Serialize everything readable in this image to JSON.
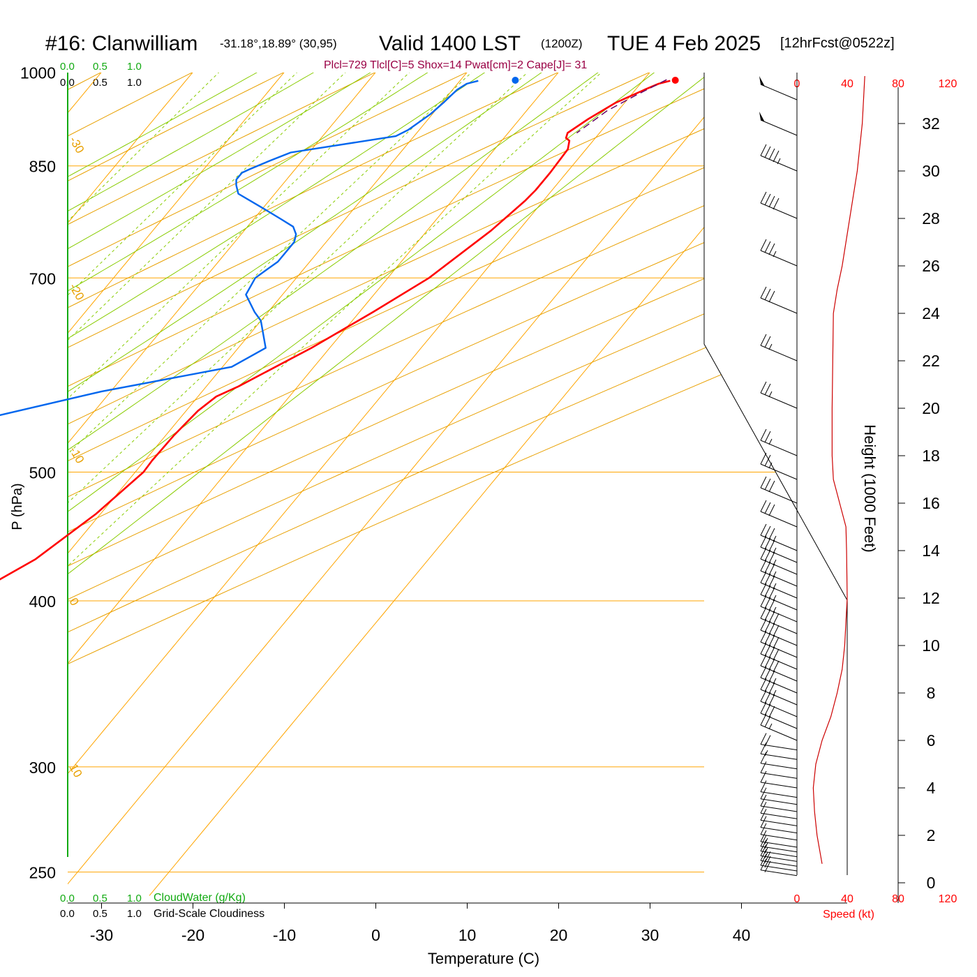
{
  "header": {
    "station": "#16: Clanwilliam",
    "coords": "-31.18°,18.89° (30,95)",
    "valid": "Valid 1400 LST",
    "zulu": "(1200Z)",
    "date": "TUE 4 Feb 2025",
    "forecast": "[12hrFcst@0522z]",
    "indices": "Plcl=729 Tlcl[C]=5 Shox=14 Pwat[cm]=2 Cape[J]= 31"
  },
  "scales": {
    "cloudwater_ticks": [
      "0.0",
      "0.5",
      "1.0"
    ],
    "cloudiness_ticks": [
      "0.0",
      "0.5",
      "1.0"
    ],
    "cloudwater_label": "CloudWater (g/Kg)",
    "cloudiness_label": "Grid-Scale Cloudiness",
    "speed_ticks": [
      "0",
      "40",
      "80",
      "120"
    ],
    "speed_label": "Speed (kt)"
  },
  "colors": {
    "isobar": "#ffa500",
    "dry_adiabat": "#e8a000",
    "moist_adiabat": "#88cc00",
    "mixing_ratio": "#88cc00",
    "temperature": "#ff0000",
    "dewpoint": "#0066ee",
    "parcel": "#660066",
    "speed": "#cc0000"
  },
  "chart_data": {
    "type": "line",
    "chart_kind": "skew-T log-P sounding",
    "xlabel": "Temperature (C)",
    "ylabel": "P (hPa)",
    "y2label": "Height (1000 Feet)",
    "x_ticks": [
      -30,
      -20,
      -10,
      0,
      10,
      20,
      30,
      40
    ],
    "y_ticks": [
      250,
      300,
      400,
      500,
      700,
      850,
      1000
    ],
    "height_ticks": [
      0,
      2,
      4,
      6,
      8,
      10,
      12,
      14,
      16,
      18,
      20,
      22,
      24,
      26,
      28,
      30,
      32
    ],
    "dry_adiabat_labels": [
      "10",
      "0",
      "-10",
      "-20",
      "-30"
    ],
    "dry_adiabat_label_pressures": [
      300,
      400,
      520,
      690,
      890
    ],
    "isotherm_labels": [
      "0",
      "10",
      "20",
      "30"
    ],
    "mixing_ratio_values": [
      1,
      2,
      3,
      5,
      8,
      12,
      20
    ],
    "series": [
      {
        "name": "Temperature",
        "points": [
          [
            33.0,
            985
          ],
          [
            32.0,
            980
          ],
          [
            31.0,
            970
          ],
          [
            29.0,
            948
          ],
          [
            27.5,
            922
          ],
          [
            26.5,
            900
          ],
          [
            26.8,
            892
          ],
          [
            27.4,
            888
          ],
          [
            28.0,
            875
          ],
          [
            28.2,
            840
          ],
          [
            28.2,
            815
          ],
          [
            28.0,
            800
          ],
          [
            27.0,
            760
          ],
          [
            24.5,
            700
          ],
          [
            21.5,
            660
          ],
          [
            18.0,
            620
          ],
          [
            13.5,
            580
          ],
          [
            12.0,
            570
          ],
          [
            11.3,
            556
          ],
          [
            10.9,
            533
          ],
          [
            10.8,
            510
          ],
          [
            10.9,
            500
          ],
          [
            9.5,
            465
          ],
          [
            7.0,
            430
          ],
          [
            2.0,
            395
          ],
          [
            -1.5,
            367
          ],
          [
            -4.0,
            350
          ],
          [
            -13.0,
            300
          ],
          [
            -22.0,
            258
          ]
        ]
      },
      {
        "name": "Dewpoint",
        "points": [
          [
            12.0,
            985
          ],
          [
            11.0,
            980
          ],
          [
            10.5,
            970
          ],
          [
            10.2,
            950
          ],
          [
            9.8,
            930
          ],
          [
            8.8,
            905
          ],
          [
            8.0,
            895
          ],
          [
            -2.0,
            870
          ],
          [
            -3.5,
            858
          ],
          [
            -5.0,
            845
          ],
          [
            -5.5,
            840
          ],
          [
            -5.5,
            830
          ],
          [
            -5.0,
            822
          ],
          [
            -4.0,
            810
          ],
          [
            0.0,
            790
          ],
          [
            3.0,
            775
          ],
          [
            5.0,
            765
          ],
          [
            6.0,
            755
          ],
          [
            6.5,
            745
          ],
          [
            6.5,
            720
          ],
          [
            6.0,
            710
          ],
          [
            5.5,
            700
          ],
          [
            6.0,
            680
          ],
          [
            8.5,
            660
          ],
          [
            10.0,
            650
          ],
          [
            13.0,
            620
          ],
          [
            11.0,
            600
          ],
          [
            -1.0,
            575
          ],
          [
            -31.5,
            500
          ],
          [
            -19.0,
            463
          ],
          [
            -19.0,
            435
          ],
          [
            -24.0,
            410
          ],
          [
            -26.0,
            378
          ],
          [
            -25.0,
            342
          ],
          [
            -21.0,
            312
          ],
          [
            -18.5,
            296
          ],
          [
            -16.0,
            275
          ],
          [
            -15.0,
            258
          ]
        ]
      },
      {
        "name": "Parcel",
        "points": [
          [
            32.5,
            987
          ],
          [
            30.5,
            960
          ],
          [
            28.8,
            935
          ],
          [
            27.5,
            900
          ]
        ]
      }
    ],
    "surface_markers": [
      {
        "name": "surface temperature",
        "x": 33.5,
        "p": 986
      },
      {
        "name": "surface dewpoint",
        "x": 16.0,
        "p": 986
      }
    ],
    "wind_speed_profile": {
      "xlim": [
        0,
        120
      ],
      "points": [
        [
          20,
          0.8
        ],
        [
          16,
          2
        ],
        [
          14,
          3
        ],
        [
          13,
          4
        ],
        [
          15,
          5
        ],
        [
          20,
          6
        ],
        [
          27,
          7
        ],
        [
          32,
          8
        ],
        [
          36,
          9
        ],
        [
          38,
          10
        ],
        [
          40,
          12
        ],
        [
          39.5,
          14
        ],
        [
          39,
          15
        ],
        [
          34,
          16
        ],
        [
          29,
          17
        ],
        [
          28,
          18
        ],
        [
          28,
          20
        ],
        [
          28.5,
          22
        ],
        [
          29,
          24
        ],
        [
          32,
          25
        ],
        [
          36,
          26
        ],
        [
          42,
          28
        ],
        [
          48,
          30
        ],
        [
          52,
          32
        ],
        [
          54,
          34
        ]
      ]
    },
    "wind_barbs": {
      "heights_kft": [
        0.3,
        0.5,
        0.7,
        0.9,
        1.1,
        1.3,
        1.5,
        1.8,
        2.1,
        2.4,
        2.7,
        3.0,
        3.3,
        3.6,
        4.0,
        4.4,
        4.8,
        5.2,
        5.6,
        6.0,
        6.5,
        7.0,
        7.5,
        8.0,
        8.5,
        9.0,
        9.5,
        10.0,
        10.5,
        11.0,
        11.5,
        12.0,
        12.5,
        13.0,
        13.5,
        14.0,
        15.0,
        16.0,
        17.0,
        18.0,
        20.0,
        22.0,
        24.0,
        26.0,
        28.0,
        30.0,
        31.5,
        33.0
      ],
      "speeds_kt": [
        20,
        20,
        20,
        18,
        18,
        16,
        16,
        14,
        13,
        12,
        12,
        12,
        12,
        12,
        12,
        12,
        14,
        16,
        20,
        25,
        30,
        33,
        35,
        38,
        40,
        40,
        40,
        40,
        40,
        38,
        38,
        38,
        38,
        36,
        36,
        35,
        33,
        30,
        28,
        28,
        28,
        29,
        30,
        36,
        42,
        48,
        52,
        54
      ]
    }
  }
}
